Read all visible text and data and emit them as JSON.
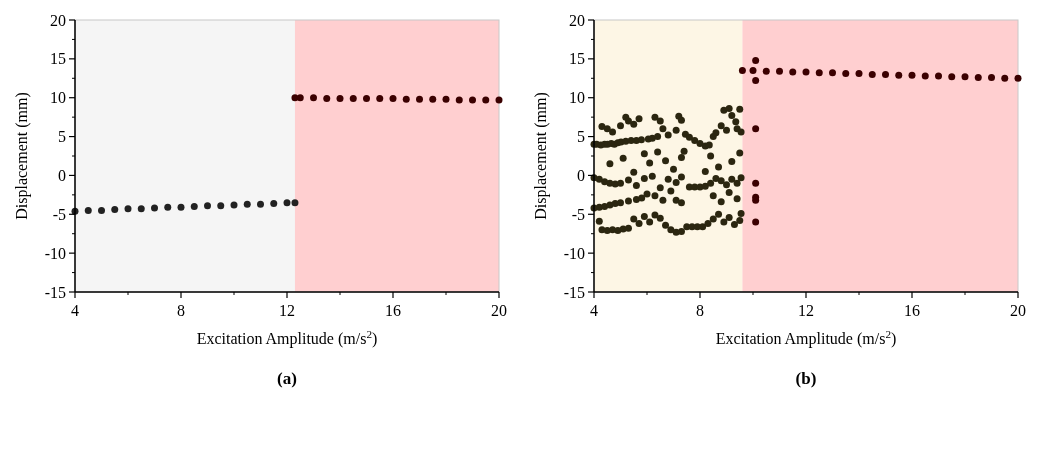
{
  "chart_data": [
    {
      "type": "scatter",
      "xlabel": "Excitation Amplitude (m/s$^{2}$)",
      "ylabel": "Displacement (mm)",
      "annotations": [
        "(a)"
      ],
      "xlim": [
        4,
        20
      ],
      "ylim": [
        -15,
        20
      ],
      "xticks": [
        4,
        8,
        12,
        16,
        20
      ],
      "yticks": [
        -15,
        -10,
        -5,
        0,
        5,
        10,
        15,
        20
      ],
      "marker": "circle",
      "grid": false,
      "bands": [
        {
          "axis": "x",
          "from": 4,
          "to": 12.3,
          "color": "#f5f5f5"
        },
        {
          "axis": "x",
          "from": 12.3,
          "to": 20,
          "color": "#ffcfd0"
        }
      ],
      "series": [
        {
          "color": "#222222",
          "x": [
            4,
            4.5,
            5,
            5.5,
            6,
            6.5,
            7,
            7.5,
            8,
            8.5,
            9,
            9.5,
            10,
            10.5,
            11,
            11.5,
            12,
            12.3
          ],
          "values": [
            -4.6,
            -4.5,
            -4.5,
            -4.4,
            -4.3,
            -4.3,
            -4.2,
            -4.1,
            -4.1,
            -4.0,
            -3.9,
            -3.9,
            -3.8,
            -3.7,
            -3.7,
            -3.6,
            -3.5,
            -3.5
          ]
        },
        {
          "color": "#3b0000",
          "x": [
            12.3,
            12.5,
            13,
            13.5,
            14,
            14.5,
            15,
            15.5,
            16,
            16.5,
            17,
            17.5,
            18,
            18.5,
            19,
            19.5,
            20
          ],
          "values": [
            10.0,
            10.0,
            10.0,
            9.9,
            9.9,
            9.9,
            9.9,
            9.9,
            9.9,
            9.8,
            9.8,
            9.8,
            9.8,
            9.7,
            9.7,
            9.7,
            9.7
          ]
        }
      ]
    },
    {
      "type": "scatter",
      "xlabel": "Excitation Amplitude (m/s$^{2}$)",
      "ylabel": "Displacement (mm)",
      "annotations": [
        "(b)"
      ],
      "xlim": [
        4,
        20
      ],
      "ylim": [
        -15,
        20
      ],
      "xticks": [
        4,
        8,
        12,
        16,
        20
      ],
      "yticks": [
        -15,
        -10,
        -5,
        0,
        5,
        10,
        15,
        20
      ],
      "marker": "circle",
      "grid": false,
      "bands": [
        {
          "axis": "x",
          "from": 4,
          "to": 9.6,
          "color": "#fdf6e5"
        },
        {
          "axis": "x",
          "from": 9.6,
          "to": 20,
          "color": "#ffcfd0"
        }
      ],
      "series": [
        {
          "color": "#2b2610",
          "x": [
            4.0,
            4.1,
            4.26,
            4.4,
            4.51,
            4.65,
            4.77,
            4.9,
            5.02,
            5.2,
            5.4,
            5.6,
            5.79,
            6.05,
            6.2,
            6.4,
            4.3,
            4.5,
            4.7,
            5.0,
            5.2,
            5.3,
            5.5,
            5.7,
            6.3,
            6.5,
            6.6,
            6.8,
            7.1,
            7.2,
            7.3,
            7.45,
            7.6,
            7.8,
            8.0,
            8.2,
            8.35,
            8.5,
            8.6,
            8.8,
            8.9,
            9.1,
            9.2,
            9.35,
            9.5,
            9.55,
            9.0,
            9.4,
            4.6,
            5.1,
            5.5,
            5.9,
            6.1,
            6.4,
            6.7,
            7.0,
            7.3,
            7.4,
            8.4,
            8.7,
            9.2,
            9.5,
            8.2,
            4.0,
            4.2,
            4.4,
            4.6,
            4.8,
            5.0,
            5.3,
            5.6,
            5.9,
            6.2,
            6.5,
            6.8,
            7.1,
            7.3,
            7.6,
            7.8,
            8.0,
            8.2,
            8.4,
            8.6,
            8.8,
            9.0,
            9.2,
            9.4,
            9.55,
            4.0,
            4.2,
            4.4,
            4.6,
            4.8,
            5.0,
            5.3,
            5.6,
            5.8,
            6.0,
            6.3,
            6.6,
            6.9,
            7.1,
            7.3,
            8.5,
            8.8,
            9.1,
            9.4,
            4.2,
            4.3,
            4.5,
            4.7,
            4.9,
            5.1,
            5.3,
            5.5,
            5.7,
            5.9,
            6.1,
            6.3,
            6.5,
            6.7,
            6.9,
            7.1,
            7.3,
            7.5,
            7.7,
            7.9,
            8.1,
            8.3,
            8.5,
            8.7,
            8.9,
            9.1,
            9.3,
            9.5,
            9.55
          ],
          "values": [
            4.0,
            4.0,
            3.9,
            4.0,
            4.0,
            4.1,
            4.0,
            4.2,
            4.3,
            4.4,
            4.5,
            4.5,
            4.6,
            4.7,
            4.8,
            5.0,
            6.3,
            6.0,
            5.6,
            6.4,
            7.5,
            7.0,
            6.6,
            7.3,
            7.5,
            7.0,
            6.0,
            5.2,
            5.8,
            7.6,
            7.1,
            5.3,
            4.9,
            4.5,
            4.1,
            3.8,
            3.9,
            5.0,
            5.5,
            6.4,
            8.4,
            8.6,
            7.7,
            6.9,
            8.5,
            5.6,
            5.8,
            6.0,
            1.5,
            2.2,
            0.4,
            2.8,
            1.6,
            3.0,
            1.9,
            0.8,
            2.3,
            3.1,
            2.5,
            1.1,
            1.8,
            2.9,
            0.5,
            -0.3,
            -0.5,
            -0.8,
            -1.0,
            -1.1,
            -1.0,
            -0.6,
            -1.3,
            -0.4,
            -0.1,
            -1.6,
            -0.5,
            -0.9,
            -0.2,
            -1.5,
            -1.5,
            -1.5,
            -1.4,
            -1.0,
            -0.4,
            -0.7,
            -1.2,
            -0.5,
            -1.0,
            -0.3,
            -4.2,
            -4.1,
            -4.0,
            -3.8,
            -3.6,
            -3.5,
            -3.3,
            -3.1,
            -2.9,
            -2.4,
            -2.6,
            -3.2,
            -2.0,
            -3.2,
            -3.5,
            -2.6,
            -3.4,
            -2.2,
            -3.0,
            -5.9,
            -7.0,
            -7.1,
            -7.0,
            -7.1,
            -6.9,
            -6.8,
            -5.6,
            -6.2,
            -5.3,
            -6.0,
            -5.1,
            -5.5,
            -6.4,
            -7.0,
            -7.3,
            -7.2,
            -6.6,
            -6.6,
            -6.6,
            -6.6,
            -6.2,
            -5.6,
            -5.0,
            -6.0,
            -5.4,
            -6.3,
            -5.8,
            -4.9
          ]
        },
        {
          "color": "#3b0000",
          "x": [
            9.6,
            10,
            10.5,
            11,
            11.5,
            12,
            12.5,
            13,
            13.5,
            14,
            14.5,
            15,
            15.5,
            16,
            16.5,
            17,
            17.5,
            18,
            18.5,
            19,
            19.5,
            20,
            10.1,
            10.1,
            10.1,
            10.1,
            10.1,
            10.1,
            10.1
          ],
          "values": [
            13.5,
            13.5,
            13.4,
            13.4,
            13.3,
            13.3,
            13.2,
            13.2,
            13.1,
            13.1,
            13.0,
            13.0,
            12.9,
            12.9,
            12.8,
            12.8,
            12.7,
            12.7,
            12.6,
            12.6,
            12.5,
            12.5,
            14.8,
            12.2,
            6.0,
            -1.0,
            -2.8,
            -3.2,
            -6.0
          ]
        }
      ]
    }
  ]
}
